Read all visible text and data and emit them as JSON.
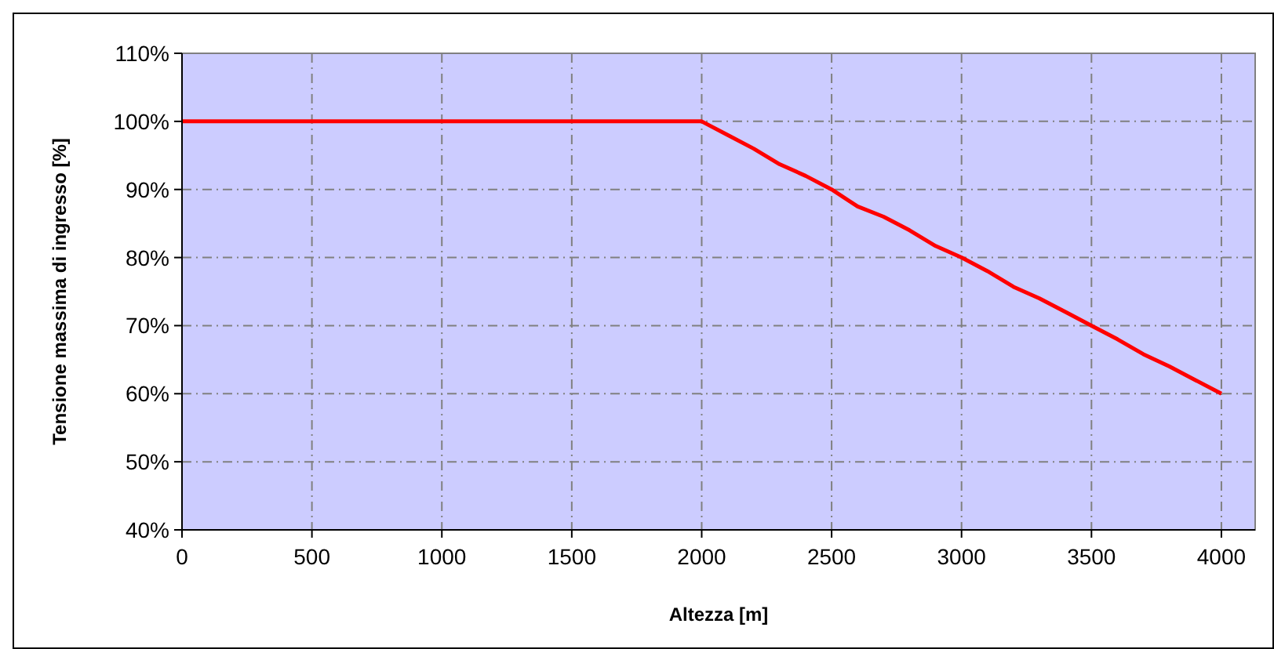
{
  "chart_data": {
    "type": "line",
    "xlabel": "Altezza [m]",
    "ylabel": "Tensione massima di ingresso [%]",
    "x": [
      0,
      2000,
      2100,
      2200,
      2300,
      2400,
      2500,
      2600,
      2700,
      2800,
      2900,
      3000,
      3100,
      3200,
      3300,
      3400,
      3500,
      3600,
      3700,
      3800,
      3900,
      4000
    ],
    "series": [
      {
        "color": "#ff0000",
        "values": [
          100,
          100,
          98,
          96,
          93.7,
          92,
          90,
          87.5,
          86,
          84,
          81.7,
          80,
          78,
          75.7,
          74,
          72,
          70,
          68,
          65.8,
          64,
          62,
          60
        ]
      }
    ],
    "xlim": [
      0,
      4130
    ],
    "xticks": [
      0,
      500,
      1000,
      1500,
      2000,
      2500,
      3000,
      3500,
      4000
    ],
    "ylim": [
      40,
      110
    ],
    "yticks": [
      {
        "value": 40,
        "label": "40%"
      },
      {
        "value": 50,
        "label": "50%"
      },
      {
        "value": 60,
        "label": "60%"
      },
      {
        "value": 70,
        "label": "70%"
      },
      {
        "value": 80,
        "label": "80%"
      },
      {
        "value": 90,
        "label": "90%"
      },
      {
        "value": 100,
        "label": "100%"
      },
      {
        "value": 110,
        "label": "110%"
      }
    ],
    "grid": true,
    "marker": "none",
    "line_style": "solid"
  }
}
